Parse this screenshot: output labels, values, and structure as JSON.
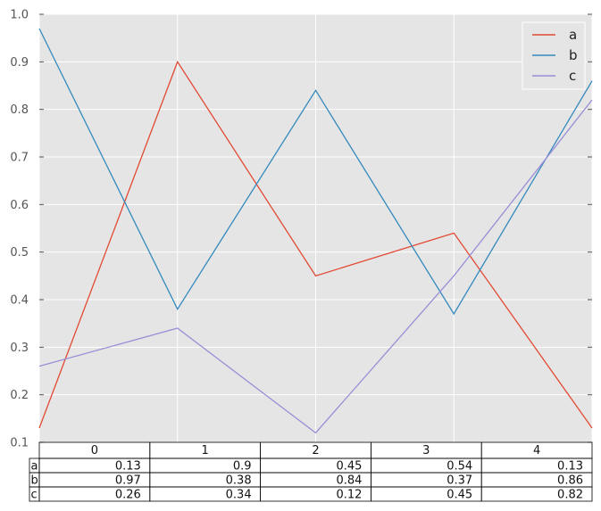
{
  "chart_data": {
    "type": "line",
    "x": [
      0,
      1,
      2,
      3,
      4
    ],
    "series": [
      {
        "name": "a",
        "values": [
          0.13,
          0.9,
          0.45,
          0.54,
          0.13
        ],
        "color": "#E24A33"
      },
      {
        "name": "b",
        "values": [
          0.97,
          0.38,
          0.84,
          0.37,
          0.86
        ],
        "color": "#348ABD"
      },
      {
        "name": "c",
        "values": [
          0.26,
          0.34,
          0.12,
          0.45,
          0.82
        ],
        "color": "#988ED5"
      }
    ],
    "ylim": [
      0.1,
      1.0
    ],
    "xlim": [
      0,
      4
    ],
    "yticks": [
      "0.1",
      "0.2",
      "0.3",
      "0.4",
      "0.5",
      "0.6",
      "0.7",
      "0.8",
      "0.9",
      "1.0"
    ],
    "grid": true,
    "legend_position": "top-right",
    "table": {
      "col_headers": [
        "0",
        "1",
        "2",
        "3",
        "4"
      ],
      "rows": [
        {
          "label": "a",
          "cells": [
            "0.13",
            "0.9",
            "0.45",
            "0.54",
            "0.13"
          ]
        },
        {
          "label": "b",
          "cells": [
            "0.97",
            "0.38",
            "0.84",
            "0.37",
            "0.86"
          ]
        },
        {
          "label": "c",
          "cells": [
            "0.26",
            "0.34",
            "0.12",
            "0.45",
            "0.82"
          ]
        }
      ]
    },
    "background": "#E5E5E5"
  }
}
